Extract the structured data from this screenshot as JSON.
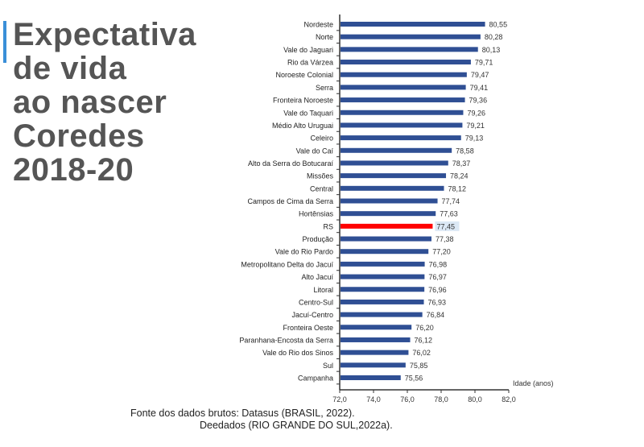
{
  "title_lines": [
    "Expectativa",
    "de vida",
    "ao nascer",
    "Coredes",
    "2018-20"
  ],
  "chart_data": {
    "type": "bar",
    "orientation": "horizontal",
    "title": "Expectativa de vida ao nascer Coredes 2018-20",
    "xlabel": "Idade (anos)",
    "ylabel": "",
    "xlim": [
      72,
      82
    ],
    "xticks": [
      "72,0",
      "74,0",
      "76,0",
      "78,0",
      "80,0",
      "82,0"
    ],
    "categories": [
      "Nordeste",
      "Norte",
      "Vale do Jaguari",
      "Rio da Várzea",
      "Noroeste Colonial",
      "Serra",
      "Fronteira Noroeste",
      "Vale do Taquari",
      "Médio Alto Uruguai",
      "Celeiro",
      "Vale do Caí",
      "Alto da Serra do Botucaraí",
      "Missões",
      "Central",
      "Campos de Cima da Serra",
      "Hortênsias",
      "RS",
      "Produção",
      "Vale do Rio Pardo",
      "Metropolitano Delta do Jacuí",
      "Alto Jacuí",
      "Litoral",
      "Centro-Sul",
      "Jacuí-Centro",
      "Fronteira Oeste",
      "Paranhana-Encosta da Serra",
      "Vale do Rio dos Sinos",
      "Sul",
      "Campanha"
    ],
    "values": [
      80.55,
      80.28,
      80.13,
      79.71,
      79.47,
      79.41,
      79.36,
      79.26,
      79.21,
      79.13,
      78.58,
      78.37,
      78.24,
      78.12,
      77.74,
      77.63,
      77.45,
      77.38,
      77.2,
      76.98,
      76.97,
      76.96,
      76.93,
      76.84,
      76.2,
      76.12,
      76.02,
      75.85,
      75.56
    ],
    "labels": [
      "80,55",
      "80,28",
      "80,13",
      "79,71",
      "79,47",
      "79,41",
      "79,36",
      "79,26",
      "79,21",
      "79,13",
      "78,58",
      "78,37",
      "78,24",
      "78,12",
      "77,74",
      "77,63",
      "77,45",
      "77,38",
      "77,20",
      "76,98",
      "76,97",
      "76,96",
      "76,93",
      "76,84",
      "76,20",
      "76,12",
      "76,02",
      "75,85",
      "75,56"
    ],
    "highlight": "RS",
    "colors": {
      "bar": "#2f4f94",
      "highlight": "#ff0000",
      "highlight_label_bg": "#dbe8f5"
    }
  },
  "footer": {
    "line1": "Fonte dos dados brutos: Datasus (BRASIL, 2022).",
    "line2": "Deedados (RIO GRANDE DO SUL,2022a)."
  }
}
